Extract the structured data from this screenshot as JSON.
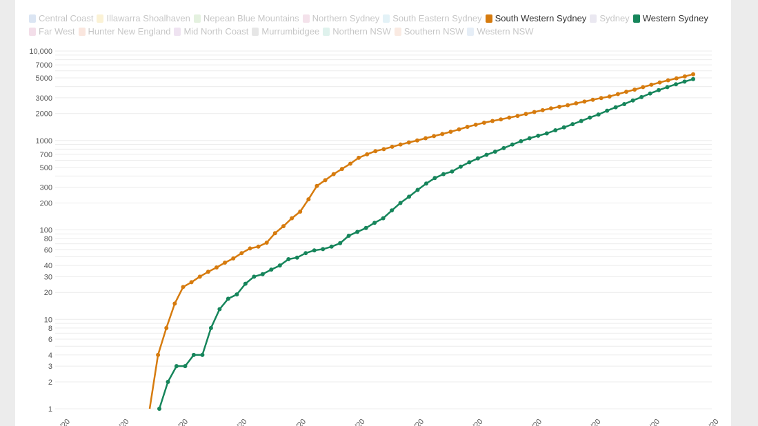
{
  "legend": {
    "rows": [
      [
        {
          "label": "Central Coast",
          "color": "#7fa6d6",
          "active": false
        },
        {
          "label": "Illawarra Shoalhaven",
          "color": "#f3d36c",
          "active": false
        },
        {
          "label": "Nepean Blue Mountains",
          "color": "#9fd08f",
          "active": false
        },
        {
          "label": "Northern Sydney",
          "color": "#d89ab9",
          "active": false
        },
        {
          "label": "South Eastern Sydney",
          "color": "#9cd3e6",
          "active": false
        },
        {
          "label": "South Western Sydney",
          "color": "#d67b0e",
          "active": true
        },
        {
          "label": "Sydney",
          "color": "#b5aed0",
          "active": false
        },
        {
          "label": "Western Sydney",
          "color": "#16855b",
          "active": true
        }
      ],
      [
        {
          "label": "Far West",
          "color": "#d68cb4",
          "active": false
        },
        {
          "label": "Hunter New England",
          "color": "#f0a98a",
          "active": false
        },
        {
          "label": "Mid North Coast",
          "color": "#c79cd0",
          "active": false
        },
        {
          "label": "Murrumbidgee",
          "color": "#a8a8a8",
          "active": false
        },
        {
          "label": "Northern NSW",
          "color": "#8fd1c0",
          "active": false
        },
        {
          "label": "Southern NSW",
          "color": "#f0b59a",
          "active": false
        },
        {
          "label": "Western NSW",
          "color": "#a9c3e6",
          "active": false
        }
      ]
    ]
  },
  "chart_data": {
    "type": "line",
    "yscale": "log",
    "ylim": [
      1,
      10000
    ],
    "ytick_labels": [
      "1",
      "2",
      "3",
      "4",
      "6",
      "8",
      "10",
      "20",
      "30",
      "40",
      "60",
      "80",
      "100",
      "200",
      "300",
      "500",
      "700",
      "1000",
      "2000",
      "3000",
      "5000",
      "7000",
      "10,000"
    ],
    "ytick_values": [
      1,
      2,
      3,
      4,
      6,
      8,
      10,
      20,
      30,
      40,
      60,
      80,
      100,
      200,
      300,
      500,
      700,
      1000,
      2000,
      3000,
      5000,
      7000,
      10000
    ],
    "xtick_labels": [
      "/20",
      "/20",
      "/20",
      "/20",
      "/20",
      "/20",
      "/20",
      "/20",
      "/20",
      "/20",
      "/20",
      "/20"
    ],
    "grid": true,
    "legend_position": "top",
    "series": [
      {
        "name": "South Western Sydney",
        "color": "#d67b0e",
        "values": [
          1,
          4,
          8,
          15,
          23,
          26,
          30,
          34,
          38,
          43,
          48,
          55,
          62,
          65,
          72,
          92,
          110,
          135,
          160,
          220,
          310,
          360,
          420,
          480,
          550,
          640,
          700,
          760,
          800,
          850,
          900,
          950,
          1000,
          1060,
          1120,
          1180,
          1250,
          1330,
          1420,
          1500,
          1580,
          1650,
          1720,
          1800,
          1880,
          1980,
          2080,
          2180,
          2280,
          2380,
          2480,
          2600,
          2720,
          2850,
          2980,
          3100,
          3300,
          3500,
          3700,
          3950,
          4200,
          4450,
          4700,
          4950,
          5200,
          5500
        ]
      },
      {
        "name": "Western Sydney",
        "color": "#16855b",
        "values": [
          1,
          2,
          3,
          3,
          4,
          4,
          8,
          13,
          17,
          19,
          25,
          30,
          32,
          36,
          40,
          47,
          49,
          55,
          59,
          61,
          65,
          71,
          86,
          95,
          105,
          120,
          135,
          165,
          200,
          235,
          280,
          330,
          380,
          420,
          450,
          510,
          570,
          630,
          690,
          750,
          820,
          900,
          980,
          1060,
          1130,
          1200,
          1300,
          1400,
          1520,
          1650,
          1800,
          1950,
          2150,
          2350,
          2550,
          2800,
          3050,
          3350,
          3650,
          3950,
          4250,
          4550,
          4850
        ]
      }
    ]
  }
}
